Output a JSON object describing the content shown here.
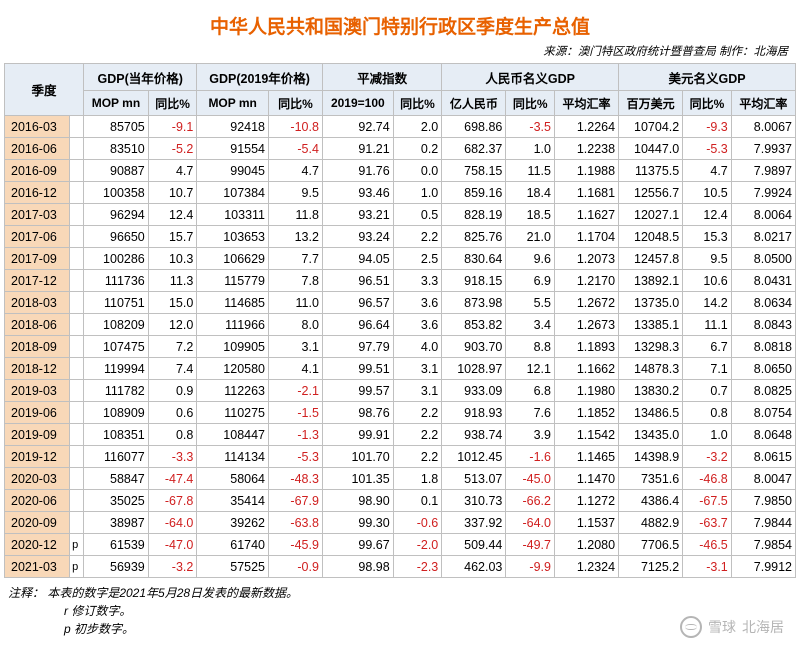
{
  "title": "中华人民共和国澳门特别行政区季度生产总值",
  "source": "来源：澳门特区政府统计暨普查局    制作：北海居",
  "headers": {
    "period": "季度",
    "groups": [
      {
        "label": "GDP(当年价格)",
        "cols": [
          "MOP mn",
          "同比%"
        ]
      },
      {
        "label": "GDP(2019年价格)",
        "cols": [
          "MOP mn",
          "同比%"
        ]
      },
      {
        "label": "平减指数",
        "cols": [
          "2019=100",
          "同比%"
        ]
      },
      {
        "label": "人民币名义GDP",
        "cols": [
          "亿人民币",
          "同比%",
          "平均汇率"
        ]
      },
      {
        "label": "美元名义GDP",
        "cols": [
          "百万美元",
          "同比%",
          "平均汇率"
        ]
      }
    ]
  },
  "rows": [
    {
      "p": "2016-03",
      "s": "",
      "c": [
        "85705",
        "-9.1",
        "92418",
        "-10.8",
        "92.74",
        "2.0",
        "698.86",
        "-3.5",
        "1.2264",
        "10704.2",
        "-9.3",
        "8.0067"
      ]
    },
    {
      "p": "2016-06",
      "s": "",
      "c": [
        "83510",
        "-5.2",
        "91554",
        "-5.4",
        "91.21",
        "0.2",
        "682.37",
        "1.0",
        "1.2238",
        "10447.0",
        "-5.3",
        "7.9937"
      ]
    },
    {
      "p": "2016-09",
      "s": "",
      "c": [
        "90887",
        "4.7",
        "99045",
        "4.7",
        "91.76",
        "0.0",
        "758.15",
        "11.5",
        "1.1988",
        "11375.5",
        "4.7",
        "7.9897"
      ]
    },
    {
      "p": "2016-12",
      "s": "",
      "c": [
        "100358",
        "10.7",
        "107384",
        "9.5",
        "93.46",
        "1.0",
        "859.16",
        "18.4",
        "1.1681",
        "12556.7",
        "10.5",
        "7.9924"
      ]
    },
    {
      "p": "2017-03",
      "s": "",
      "c": [
        "96294",
        "12.4",
        "103311",
        "11.8",
        "93.21",
        "0.5",
        "828.19",
        "18.5",
        "1.1627",
        "12027.1",
        "12.4",
        "8.0064"
      ]
    },
    {
      "p": "2017-06",
      "s": "",
      "c": [
        "96650",
        "15.7",
        "103653",
        "13.2",
        "93.24",
        "2.2",
        "825.76",
        "21.0",
        "1.1704",
        "12048.5",
        "15.3",
        "8.0217"
      ]
    },
    {
      "p": "2017-09",
      "s": "",
      "c": [
        "100286",
        "10.3",
        "106629",
        "7.7",
        "94.05",
        "2.5",
        "830.64",
        "9.6",
        "1.2073",
        "12457.8",
        "9.5",
        "8.0500"
      ]
    },
    {
      "p": "2017-12",
      "s": "",
      "c": [
        "111736",
        "11.3",
        "115779",
        "7.8",
        "96.51",
        "3.3",
        "918.15",
        "6.9",
        "1.2170",
        "13892.1",
        "10.6",
        "8.0431"
      ]
    },
    {
      "p": "2018-03",
      "s": "",
      "c": [
        "110751",
        "15.0",
        "114685",
        "11.0",
        "96.57",
        "3.6",
        "873.98",
        "5.5",
        "1.2672",
        "13735.0",
        "14.2",
        "8.0634"
      ]
    },
    {
      "p": "2018-06",
      "s": "",
      "c": [
        "108209",
        "12.0",
        "111966",
        "8.0",
        "96.64",
        "3.6",
        "853.82",
        "3.4",
        "1.2673",
        "13385.1",
        "11.1",
        "8.0843"
      ]
    },
    {
      "p": "2018-09",
      "s": "",
      "c": [
        "107475",
        "7.2",
        "109905",
        "3.1",
        "97.79",
        "4.0",
        "903.70",
        "8.8",
        "1.1893",
        "13298.3",
        "6.7",
        "8.0818"
      ]
    },
    {
      "p": "2018-12",
      "s": "",
      "c": [
        "119994",
        "7.4",
        "120580",
        "4.1",
        "99.51",
        "3.1",
        "1028.97",
        "12.1",
        "1.1662",
        "14878.3",
        "7.1",
        "8.0650"
      ]
    },
    {
      "p": "2019-03",
      "s": "",
      "c": [
        "111782",
        "0.9",
        "112263",
        "-2.1",
        "99.57",
        "3.1",
        "933.09",
        "6.8",
        "1.1980",
        "13830.2",
        "0.7",
        "8.0825"
      ]
    },
    {
      "p": "2019-06",
      "s": "",
      "c": [
        "108909",
        "0.6",
        "110275",
        "-1.5",
        "98.76",
        "2.2",
        "918.93",
        "7.6",
        "1.1852",
        "13486.5",
        "0.8",
        "8.0754"
      ]
    },
    {
      "p": "2019-09",
      "s": "",
      "c": [
        "108351",
        "0.8",
        "108447",
        "-1.3",
        "99.91",
        "2.2",
        "938.74",
        "3.9",
        "1.1542",
        "13435.0",
        "1.0",
        "8.0648"
      ]
    },
    {
      "p": "2019-12",
      "s": "",
      "c": [
        "116077",
        "-3.3",
        "114134",
        "-5.3",
        "101.70",
        "2.2",
        "1012.45",
        "-1.6",
        "1.1465",
        "14398.9",
        "-3.2",
        "8.0615"
      ]
    },
    {
      "p": "2020-03",
      "s": "",
      "c": [
        "58847",
        "-47.4",
        "58064",
        "-48.3",
        "101.35",
        "1.8",
        "513.07",
        "-45.0",
        "1.1470",
        "7351.6",
        "-46.8",
        "8.0047"
      ]
    },
    {
      "p": "2020-06",
      "s": "",
      "c": [
        "35025",
        "-67.8",
        "35414",
        "-67.9",
        "98.90",
        "0.1",
        "310.73",
        "-66.2",
        "1.1272",
        "4386.4",
        "-67.5",
        "7.9850"
      ]
    },
    {
      "p": "2020-09",
      "s": "",
      "c": [
        "38987",
        "-64.0",
        "39262",
        "-63.8",
        "99.30",
        "-0.6",
        "337.92",
        "-64.0",
        "1.1537",
        "4882.9",
        "-63.7",
        "7.9844"
      ]
    },
    {
      "p": "2020-12",
      "s": "p",
      "c": [
        "61539",
        "-47.0",
        "61740",
        "-45.9",
        "99.67",
        "-2.0",
        "509.44",
        "-49.7",
        "1.2080",
        "7706.5",
        "-46.5",
        "7.9854"
      ]
    },
    {
      "p": "2021-03",
      "s": "p",
      "c": [
        "56939",
        "-3.2",
        "57525",
        "-0.9",
        "98.98",
        "-2.3",
        "462.03",
        "-9.9",
        "1.2324",
        "7125.2",
        "-3.1",
        "7.9912"
      ]
    }
  ],
  "notes": {
    "line1": "注释：    本表的数字是2021年5月28日发表的最新数据。",
    "line2": "r  修订数字。",
    "line3": "p  初步数字。"
  },
  "watermark": {
    "site": "雪球",
    "author": "北海居"
  }
}
